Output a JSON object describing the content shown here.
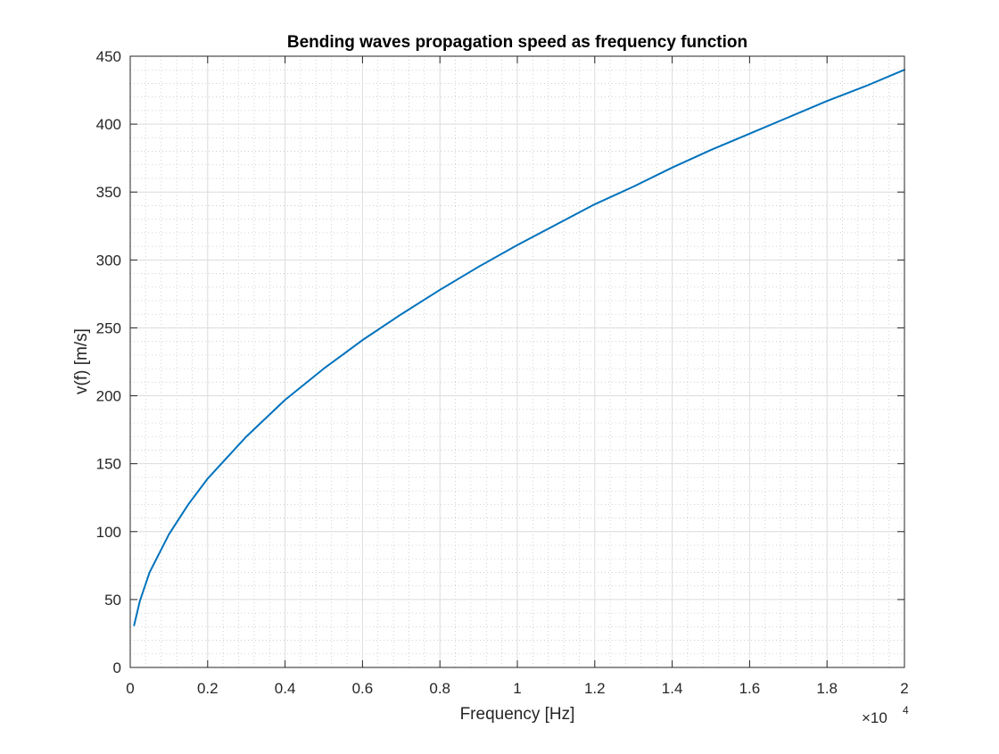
{
  "chart_data": {
    "type": "line",
    "title": "Bending waves propagation speed as frequency function",
    "xlabel": "Frequency [Hz]",
    "ylabel": "v(f) [m/s]",
    "xlim": [
      0,
      20000
    ],
    "ylim": [
      0,
      450
    ],
    "x_ticks": [
      0,
      2000,
      4000,
      6000,
      8000,
      10000,
      12000,
      14000,
      16000,
      18000,
      20000
    ],
    "x_tick_labels": [
      "0",
      "0.2",
      "0.4",
      "0.6",
      "0.8",
      "1",
      "1.2",
      "1.4",
      "1.6",
      "1.8",
      "2"
    ],
    "x_exponent": {
      "base": "×10",
      "power": "4"
    },
    "y_ticks": [
      0,
      50,
      100,
      150,
      200,
      250,
      300,
      350,
      400,
      450
    ],
    "y_tick_labels": [
      "0",
      "50",
      "100",
      "150",
      "200",
      "250",
      "300",
      "350",
      "400",
      "450"
    ],
    "grid": true,
    "minor_grid": true,
    "series": [
      {
        "color": "#0072BD",
        "x": [
          100,
          250,
          500,
          1000,
          1500,
          2000,
          3000,
          4000,
          5000,
          6000,
          7000,
          8000,
          9000,
          10000,
          11000,
          12000,
          13000,
          14000,
          15000,
          16000,
          17000,
          18000,
          19000,
          20000
        ],
        "y": [
          31,
          49,
          70,
          98,
          120,
          139,
          170,
          197,
          220,
          241,
          260,
          278,
          295,
          311,
          326,
          341,
          354,
          368,
          381,
          393,
          405,
          417,
          428,
          440
        ]
      }
    ]
  }
}
